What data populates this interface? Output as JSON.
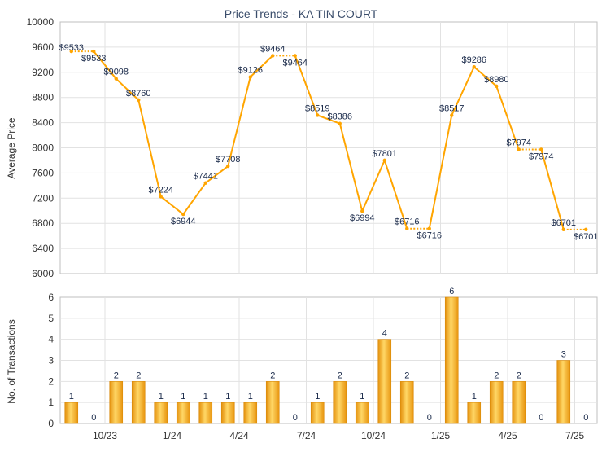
{
  "chart_data": [
    {
      "type": "line",
      "title": "Price Trends - KA TIN COURT",
      "ylabel": "Average Price",
      "ylim": [
        6000,
        10000
      ],
      "yticks": [
        6000,
        6400,
        6800,
        7200,
        7600,
        8000,
        8400,
        8800,
        9200,
        9600,
        10000
      ],
      "grid": true,
      "line_color": "#ffa500",
      "x": [
        "2023-08",
        "2023-09",
        "2023-10",
        "2023-11",
        "2023-12",
        "2024-01",
        "2024-02",
        "2024-03",
        "2024-04",
        "2024-05",
        "2024-06",
        "2024-07",
        "2024-08",
        "2024-09",
        "2024-10",
        "2024-11",
        "2024-12",
        "2025-01",
        "2025-02",
        "2025-03",
        "2025-04",
        "2025-05",
        "2025-06",
        "2025-07"
      ],
      "values": [
        9533,
        9533,
        9098,
        8760,
        7224,
        6944,
        7441,
        7708,
        9126,
        9464,
        9464,
        8519,
        8386,
        6994,
        7801,
        6716,
        6716,
        8517,
        9286,
        8980,
        7974,
        7974,
        6701,
        6701
      ],
      "labels": [
        "$9533",
        "$9533",
        "$9098",
        "$8760",
        "$7224",
        "$6944",
        "$7441",
        "$7708",
        "$9126",
        "$9464",
        "$9464",
        "$8519",
        "$8386",
        "$6994",
        "$7801",
        "$6716",
        "$6716",
        "$8517",
        "$9286",
        "$8980",
        "$7974",
        "$7974",
        "$6701",
        "$6701"
      ],
      "estimated": [
        false,
        true,
        false,
        false,
        false,
        false,
        false,
        false,
        false,
        false,
        true,
        false,
        false,
        false,
        false,
        false,
        true,
        false,
        false,
        false,
        false,
        true,
        false,
        true
      ]
    },
    {
      "type": "bar",
      "ylabel": "No. of Transactions",
      "ylim": [
        0,
        6
      ],
      "yticks": [
        0,
        1,
        2,
        3,
        4,
        5,
        6
      ],
      "grid": true,
      "bar_color": "#f5a623",
      "x": [
        "2023-08",
        "2023-09",
        "2023-10",
        "2023-11",
        "2023-12",
        "2024-01",
        "2024-02",
        "2024-03",
        "2024-04",
        "2024-05",
        "2024-06",
        "2024-07",
        "2024-08",
        "2024-09",
        "2024-10",
        "2024-11",
        "2024-12",
        "2025-01",
        "2025-02",
        "2025-03",
        "2025-04",
        "2025-05",
        "2025-06",
        "2025-07"
      ],
      "values": [
        1,
        0,
        2,
        2,
        1,
        1,
        1,
        1,
        1,
        2,
        0,
        1,
        2,
        1,
        4,
        2,
        0,
        6,
        1,
        2,
        2,
        0,
        3,
        0
      ],
      "xtick_labels": [
        "",
        "",
        "10/23",
        "",
        "",
        "1/24",
        "",
        "",
        "4/24",
        "",
        "",
        "7/24",
        "",
        "",
        "10/24",
        "",
        "",
        "1/25",
        "",
        "",
        "4/25",
        "",
        "",
        "7/25"
      ]
    }
  ]
}
